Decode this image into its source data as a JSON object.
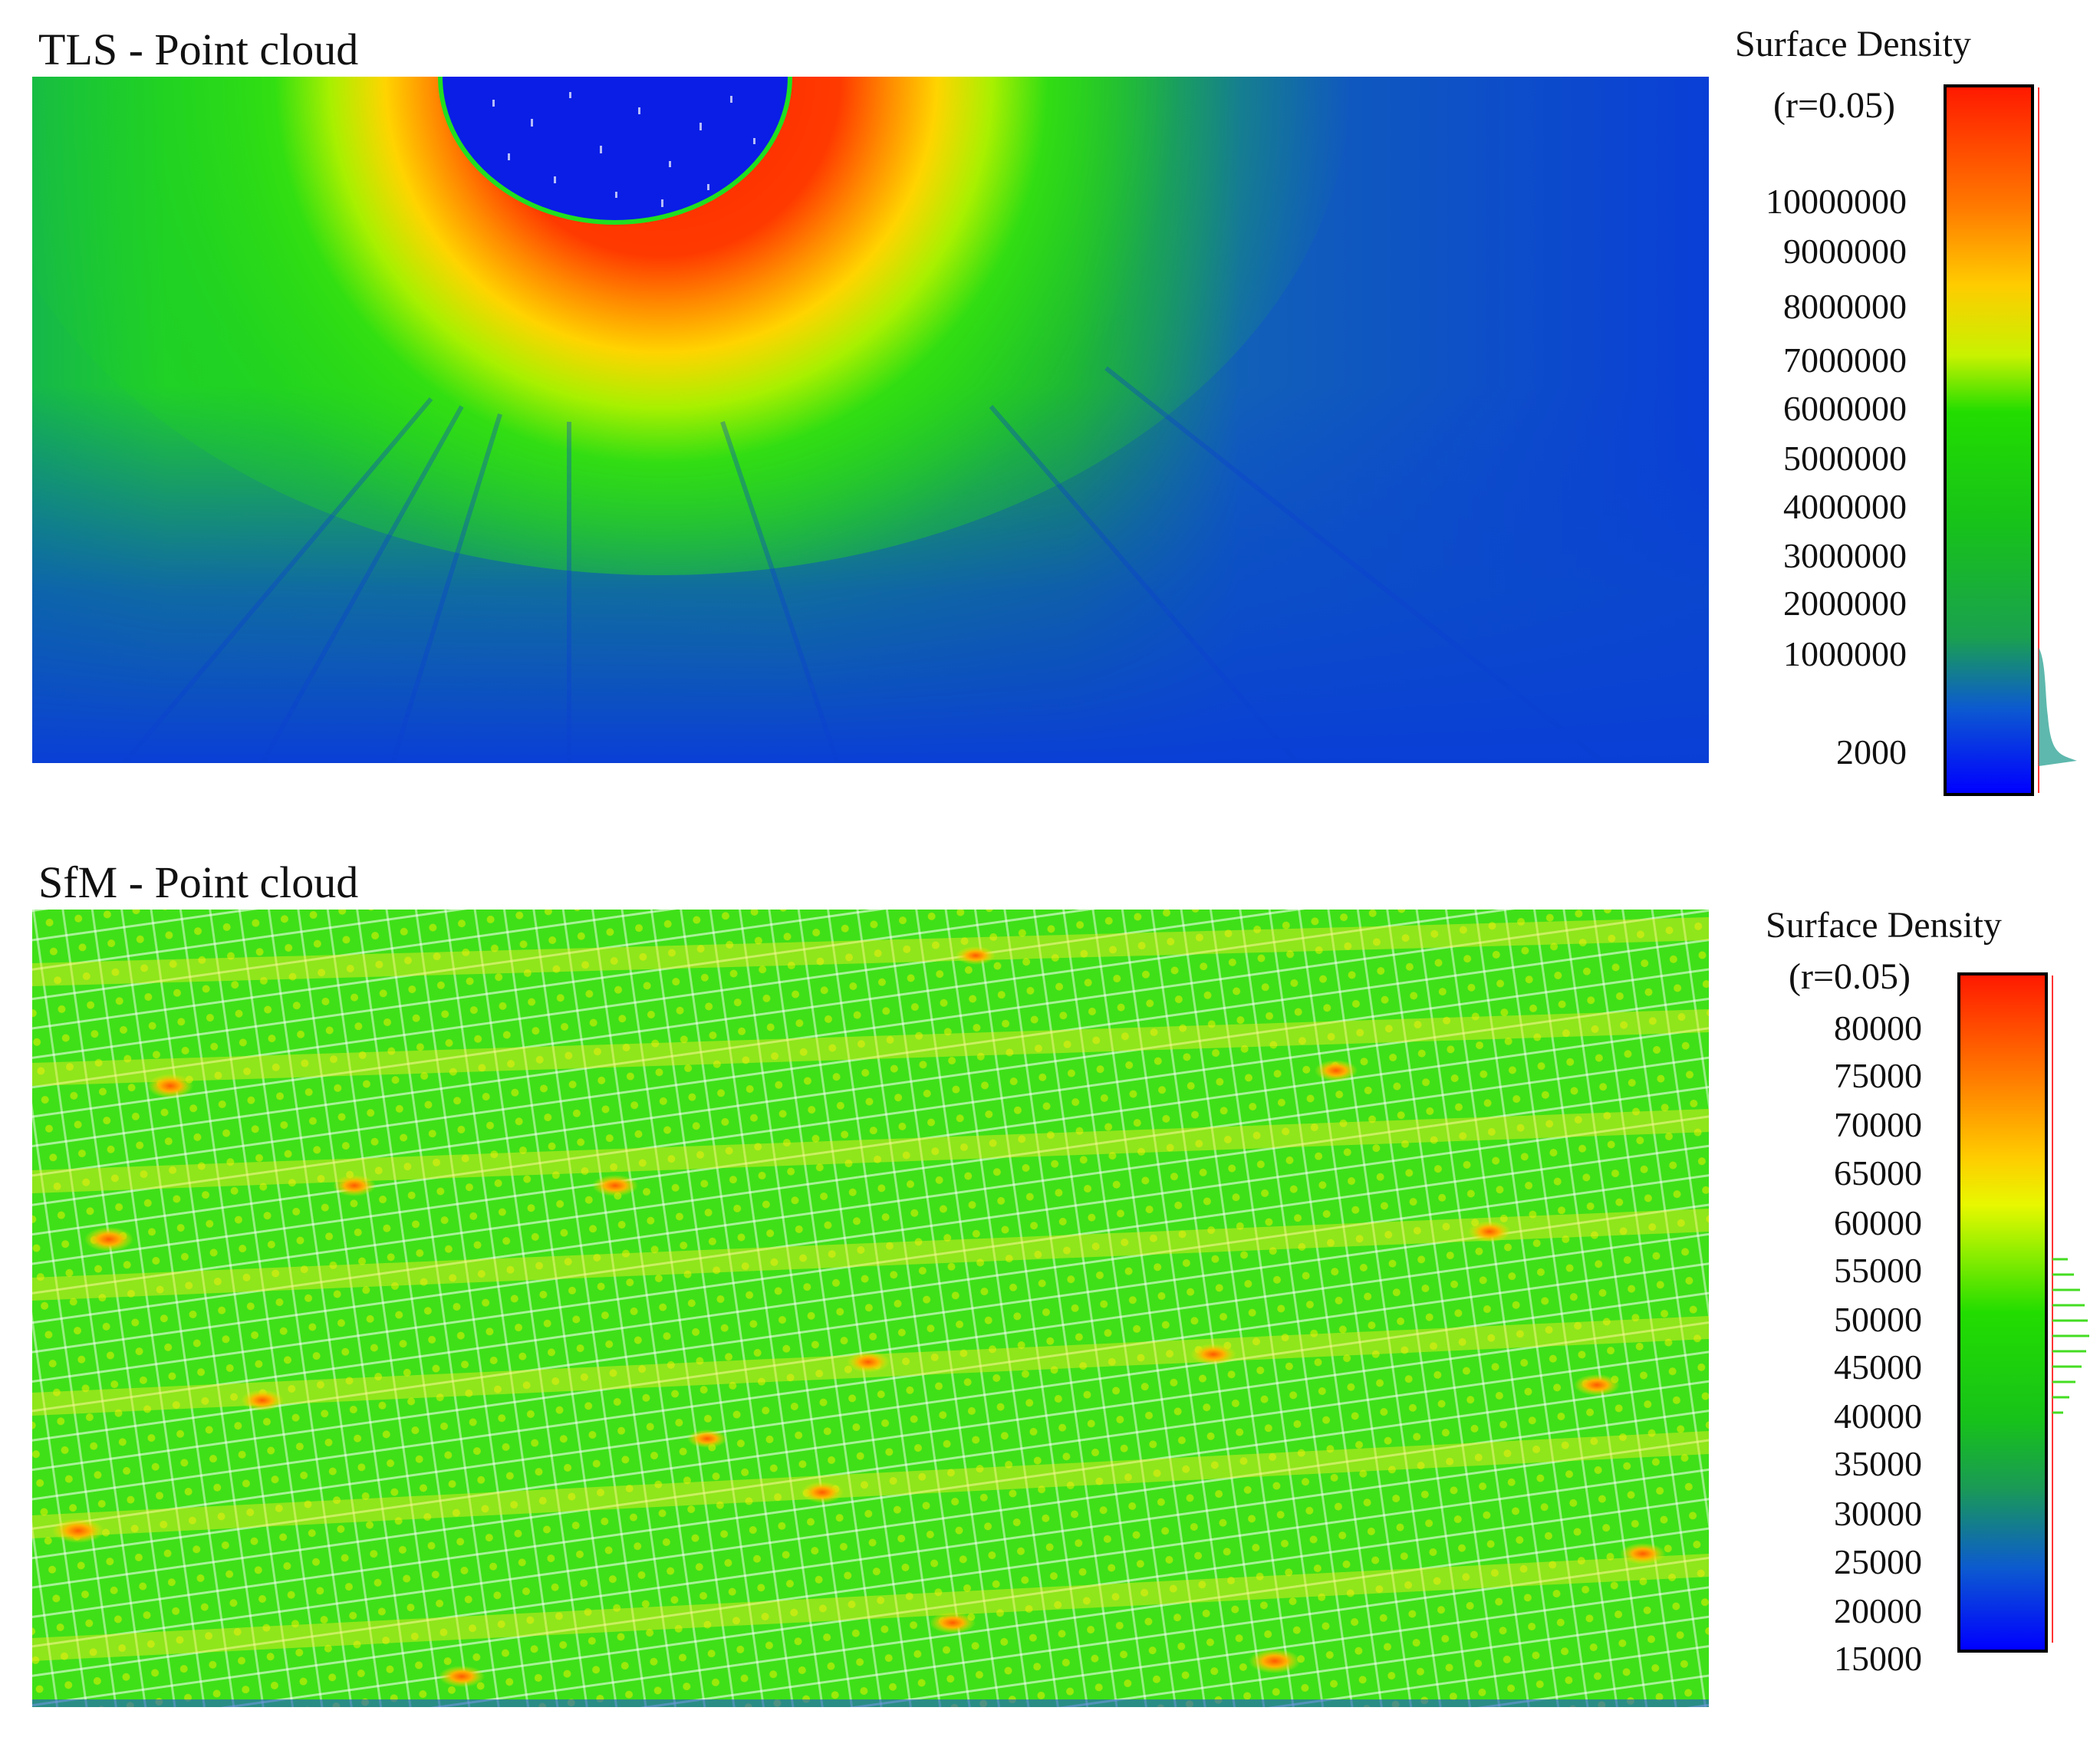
{
  "panels": [
    {
      "id": "tls",
      "title": "TLS - Point cloud",
      "legend": {
        "title": "Surface Density",
        "subtitle": "(r=0.05)",
        "ticks": [
          "10000000",
          "9000000",
          "8000000",
          "7000000",
          "6000000",
          "5000000",
          "4000000",
          "3000000",
          "2000000",
          "1000000",
          "2000"
        ]
      }
    },
    {
      "id": "sfm",
      "title": "SfM - Point cloud",
      "legend": {
        "title": "Surface Density",
        "subtitle": "(r=0.05)",
        "ticks": [
          "80000",
          "75000",
          "70000",
          "65000",
          "60000",
          "55000",
          "50000",
          "45000",
          "40000",
          "35000",
          "30000",
          "25000",
          "20000",
          "15000"
        ]
      }
    }
  ],
  "colors": {
    "ramp_low": "#0000ff",
    "ramp_mid": "#00dd00",
    "ramp_yellow": "#ffff00",
    "ramp_high": "#ff0000",
    "cloud_blue": "#0a3fd6",
    "cloud_green": "#22e010"
  }
}
